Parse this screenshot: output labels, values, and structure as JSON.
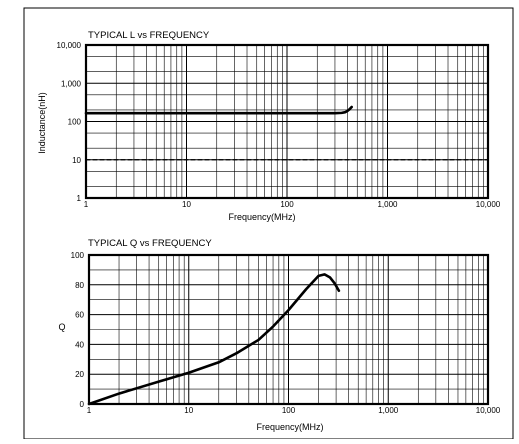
{
  "chart_data": [
    {
      "type": "line",
      "title": "TYPICAL L vs FREQUENCY",
      "xlabel": "Frequency(MHz)",
      "ylabel": "Inductance(nH)",
      "xscale": "log",
      "yscale": "log",
      "xlim": [
        1,
        10000
      ],
      "ylim": [
        1,
        10000
      ],
      "grid": true,
      "x_ticks": [
        {
          "value": 1,
          "label": "1"
        },
        {
          "value": 10,
          "label": "10"
        },
        {
          "value": 100,
          "label": "100"
        },
        {
          "value": 1000,
          "label": "1,000"
        },
        {
          "value": 10000,
          "label": "10,000"
        }
      ],
      "y_ticks": [
        {
          "value": 1,
          "label": "1"
        },
        {
          "value": 10,
          "label": "10"
        },
        {
          "value": 100,
          "label": "100"
        },
        {
          "value": 1000,
          "label": "1,000"
        },
        {
          "value": 10000,
          "label": "10,000"
        }
      ],
      "series": [
        {
          "style": "solid",
          "x": [
            1,
            10,
            100,
            300,
            350,
            380,
            400,
            420,
            440
          ],
          "y": [
            165,
            165,
            165,
            165,
            168,
            175,
            190,
            210,
            240
          ]
        },
        {
          "style": "dashed",
          "x": [
            1,
            10000
          ],
          "y": [
            10,
            10
          ]
        }
      ]
    },
    {
      "type": "line",
      "title": "TYPICAL Q vs FREQUENCY",
      "xlabel": "Frequency(MHz)",
      "ylabel": "Q",
      "xscale": "log",
      "xlim": [
        1,
        10000
      ],
      "ylim": [
        0,
        100
      ],
      "grid": true,
      "x_ticks": [
        {
          "value": 1,
          "label": "1"
        },
        {
          "value": 10,
          "label": "10"
        },
        {
          "value": 100,
          "label": "100"
        },
        {
          "value": 1000,
          "label": "1,000"
        },
        {
          "value": 10000,
          "label": "10,000"
        }
      ],
      "y_ticks": [
        {
          "value": 0,
          "label": "0"
        },
        {
          "value": 20,
          "label": "20"
        },
        {
          "value": 40,
          "label": "40"
        },
        {
          "value": 60,
          "label": "60"
        },
        {
          "value": 80,
          "label": "80"
        },
        {
          "value": 100,
          "label": "100"
        }
      ],
      "series": [
        {
          "style": "solid",
          "x": [
            1,
            2,
            5,
            10,
            20,
            30,
            50,
            70,
            100,
            150,
            200,
            230,
            260,
            290,
            320
          ],
          "y": [
            0,
            7,
            15,
            21,
            28,
            34,
            43,
            52,
            63,
            77,
            86,
            87,
            85,
            81,
            76
          ]
        }
      ]
    }
  ]
}
